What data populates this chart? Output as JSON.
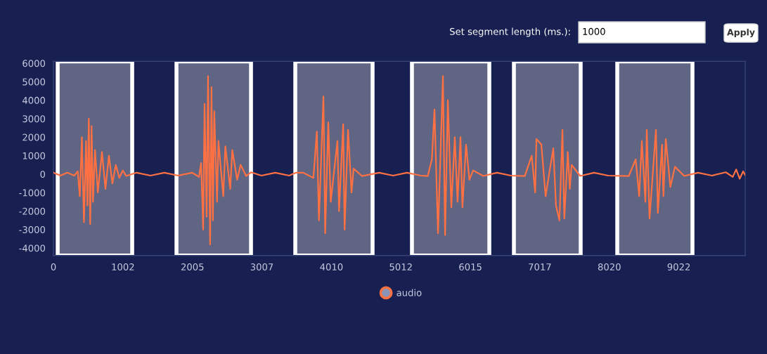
{
  "chart_data": {
    "type": "line",
    "x": [
      0,
      100,
      200,
      300,
      350,
      380,
      410,
      440,
      470,
      490,
      510,
      530,
      550,
      570,
      600,
      640,
      700,
      750,
      800,
      850,
      900,
      950,
      1000,
      1050,
      1200,
      1400,
      1600,
      1800,
      2000,
      2100,
      2130,
      2160,
      2180,
      2210,
      2230,
      2260,
      2280,
      2300,
      2320,
      2360,
      2380,
      2450,
      2480,
      2550,
      2580,
      2650,
      2700,
      2780,
      2850,
      3000,
      3200,
      3400,
      3500,
      3600,
      3750,
      3800,
      3830,
      3895,
      3920,
      3965,
      4000,
      4097,
      4120,
      4180,
      4200,
      4250,
      4300,
      4330,
      4450,
      4700,
      4900,
      5100,
      5300,
      5400,
      5460,
      5497,
      5548,
      5619,
      5650,
      5690,
      5740,
      5790,
      5830,
      5872,
      5900,
      5953,
      6000,
      6055,
      6200,
      6400,
      6600,
      6800,
      6900,
      6950,
      6968,
      7039,
      7100,
      7211,
      7250,
      7300,
      7343,
      7370,
      7420,
      7450,
      7475,
      7600,
      7800,
      8000,
      8300,
      8400,
      8450,
      8489,
      8540,
      8560,
      8600,
      8692,
      8720,
      8780,
      8800,
      8834,
      8900,
      8966,
      9100,
      9300,
      9500,
      9700,
      9800,
      9850,
      9900,
      9950,
      9980
    ],
    "series": [
      {
        "name": "audio",
        "color": "#ff7043",
        "values": [
          80,
          -80,
          80,
          -80,
          150,
          -1200,
          2000,
          -2600,
          1800,
          -1700,
          3000,
          -2700,
          2600,
          -1500,
          1300,
          -1000,
          1200,
          -800,
          1000,
          -500,
          500,
          -200,
          200,
          -100,
          80,
          -80,
          80,
          -80,
          80,
          -150,
          600,
          -3000,
          3800,
          -2300,
          5300,
          -3800,
          4700,
          -2500,
          3400,
          -1500,
          1800,
          -1200,
          1500,
          -800,
          1300,
          -300,
          500,
          -100,
          100,
          -80,
          80,
          -80,
          80,
          80,
          -200,
          2300,
          -2500,
          4200,
          -3200,
          2800,
          -1500,
          1800,
          -2000,
          2700,
          -3000,
          2400,
          -1000,
          300,
          -100,
          80,
          -80,
          80,
          -80,
          -100,
          800,
          3500,
          -3200,
          5300,
          -3300,
          4000,
          -1800,
          2000,
          -1500,
          2000,
          -1800,
          1600,
          -300,
          200,
          -100,
          80,
          -80,
          -100,
          1000,
          -1000,
          1900,
          1600,
          -1200,
          1400,
          -1700,
          -2500,
          2400,
          -2400,
          1200,
          -800,
          500,
          -100,
          80,
          -80,
          -100,
          800,
          -1200,
          1800,
          -1500,
          2400,
          -2400,
          2400,
          -2100,
          1600,
          -1200,
          1900,
          -700,
          400,
          -100,
          80,
          -80,
          100,
          -150,
          250,
          -250,
          150,
          -50
        ]
      }
    ],
    "xlim": [
      0,
      9980
    ],
    "ylim": [
      -4400,
      6100
    ],
    "xticks": [
      0,
      1002,
      2005,
      3007,
      4010,
      5012,
      6015,
      7017,
      8020,
      9022
    ],
    "yticks": [
      -4000,
      -3000,
      -2000,
      -1000,
      0,
      1000,
      2000,
      3000,
      4000,
      5000,
      6000
    ],
    "bands": [
      {
        "axis": "x",
        "from": 61,
        "to": 1136,
        "color": "#5f6582"
      },
      {
        "axis": "x",
        "from": 1775,
        "to": 2850,
        "color": "#5f6582"
      },
      {
        "axis": "x",
        "from": 3489,
        "to": 4604,
        "color": "#5f6582"
      },
      {
        "axis": "x",
        "from": 5172,
        "to": 6288,
        "color": "#5f6582"
      },
      {
        "axis": "x",
        "from": 6643,
        "to": 7606,
        "color": "#5f6582"
      },
      {
        "axis": "x",
        "from": 8134,
        "to": 9219,
        "color": "#5f6582"
      }
    ],
    "annotations": [
      "Set segment length (ms.):",
      "1000",
      "Apply"
    ],
    "grid": false,
    "legend": "bottom"
  }
}
